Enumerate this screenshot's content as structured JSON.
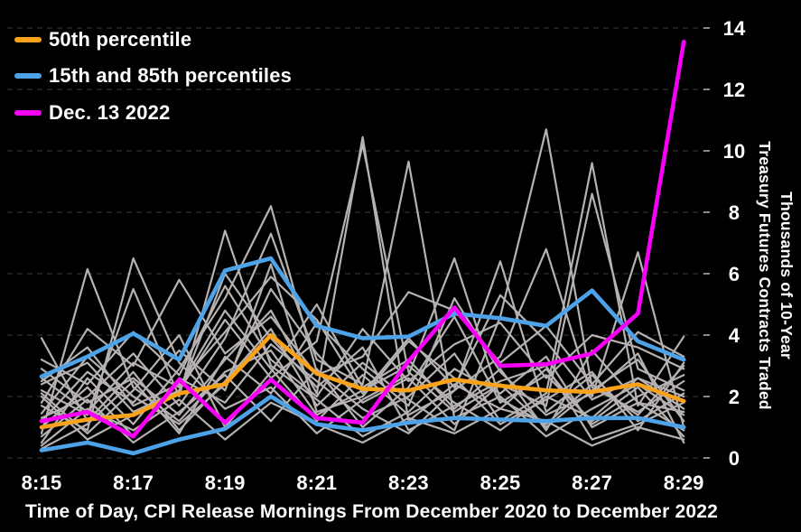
{
  "legend": [
    {
      "label": "50th percentile",
      "color": "#f9a21a"
    },
    {
      "label": "15th and 85th percentiles",
      "color": "#4da2e8"
    },
    {
      "label": "Dec. 13 2022",
      "color": "#f800f8"
    }
  ],
  "y_axis": {
    "ticks": [
      0,
      2,
      4,
      6,
      8,
      10,
      12,
      14
    ],
    "label_line1": "Thousands of 10-Year",
    "label_line2": "Treasury Futures Contracts Traded"
  },
  "x_axis": {
    "ticks": [
      "8:15",
      "8:17",
      "8:19",
      "8:21",
      "8:23",
      "8:25",
      "8:27",
      "8:29"
    ],
    "title": "Time of Day, CPI Release Mornings From December 2020 to December 2022"
  },
  "colors": {
    "background": "#000000",
    "grid": "#3c3c3c",
    "axis_tick": "#8a8a8a",
    "gray_line": "#b7b2b2",
    "text": "#ffffff"
  },
  "chart_data": {
    "type": "line",
    "title": "",
    "xlabel": "Time of Day, CPI Release Mornings From December 2020 to December 2022",
    "ylabel": "Thousands of 10-Year Treasury Futures Contracts Traded",
    "x": [
      "8:15",
      "8:16",
      "8:17",
      "8:18",
      "8:19",
      "8:20",
      "8:21",
      "8:22",
      "8:23",
      "8:24",
      "8:25",
      "8:26",
      "8:27",
      "8:28",
      "8:29"
    ],
    "ylim": [
      0,
      14
    ],
    "grid": "horizontal-dashed",
    "legend_position": "top-left",
    "series": [
      {
        "name": "cpi-morning-01",
        "role": "individual-morning",
        "color": "#b7b2b2",
        "width": 2.2,
        "values": [
          2.9,
          1.8,
          2.6,
          1.4,
          3.2,
          4.8,
          2.1,
          10.45,
          1.2,
          2.4,
          1.6,
          2.9,
          1.1,
          2.0,
          2.7
        ]
      },
      {
        "name": "cpi-morning-02",
        "role": "individual-morning",
        "color": "#b7b2b2",
        "width": 2.2,
        "values": [
          2.4,
          3.1,
          1.5,
          2.2,
          4.5,
          2.6,
          3.8,
          10.2,
          2.8,
          1.5,
          2.4,
          1.0,
          2.2,
          3.2,
          1.2
        ]
      },
      {
        "name": "cpi-morning-03",
        "role": "individual-morning",
        "color": "#b7b2b2",
        "width": 2.2,
        "values": [
          0.8,
          6.15,
          2.3,
          1.2,
          2.8,
          3.5,
          1.4,
          2.2,
          3.0,
          1.8,
          0.9,
          2.0,
          1.3,
          2.6,
          1.6
        ]
      },
      {
        "name": "cpi-morning-04",
        "role": "individual-morning",
        "color": "#b7b2b2",
        "width": 2.2,
        "values": [
          1.7,
          0.9,
          6.5,
          3.1,
          1.6,
          2.3,
          0.8,
          1.9,
          2.7,
          6.5,
          1.9,
          1.1,
          2.4,
          1.4,
          3.0
        ]
      },
      {
        "name": "cpi-morning-05",
        "role": "individual-morning",
        "color": "#b7b2b2",
        "width": 2.2,
        "values": [
          2.2,
          1.4,
          5.5,
          2.0,
          7.4,
          3.0,
          1.9,
          0.7,
          1.5,
          2.9,
          2.1,
          3.3,
          1.0,
          1.8,
          0.9
        ]
      },
      {
        "name": "cpi-morning-06",
        "role": "individual-morning",
        "color": "#b7b2b2",
        "width": 2.2,
        "values": [
          0.5,
          2.6,
          1.1,
          2.9,
          5.2,
          8.2,
          2.8,
          1.6,
          0.8,
          2.2,
          6.4,
          1.5,
          2.7,
          1.2,
          2.1
        ]
      },
      {
        "name": "cpi-morning-07",
        "role": "individual-morning",
        "color": "#b7b2b2",
        "width": 2.2,
        "values": [
          1.3,
          2.0,
          3.4,
          1.7,
          3.9,
          7.3,
          3.2,
          2.4,
          9.65,
          1.3,
          2.0,
          0.7,
          1.6,
          2.4,
          1.4
        ]
      },
      {
        "name": "cpi-morning-08",
        "role": "individual-morning",
        "color": "#b7b2b2",
        "width": 2.2,
        "values": [
          3.9,
          1.2,
          2.8,
          0.9,
          2.5,
          4.2,
          1.7,
          3.1,
          1.9,
          0.9,
          4.6,
          10.7,
          2.3,
          1.5,
          2.5
        ]
      },
      {
        "name": "cpi-morning-09",
        "role": "individual-morning",
        "color": "#b7b2b2",
        "width": 2.2,
        "values": [
          1.0,
          2.3,
          0.7,
          2.6,
          1.8,
          3.7,
          2.5,
          1.3,
          2.0,
          3.4,
          1.2,
          2.1,
          9.6,
          1.7,
          3.95
        ]
      },
      {
        "name": "cpi-morning-10",
        "role": "individual-morning",
        "color": "#b7b2b2",
        "width": 2.2,
        "values": [
          2.6,
          1.5,
          3.1,
          2.3,
          4.8,
          2.9,
          1.2,
          2.7,
          1.4,
          2.2,
          3.3,
          6.8,
          2.0,
          6.7,
          1.0
        ]
      },
      {
        "name": "cpi-morning-11",
        "role": "individual-morning",
        "color": "#b7b2b2",
        "width": 2.2,
        "values": [
          1.45,
          3.3,
          2.0,
          1.1,
          2.4,
          5.5,
          3.4,
          1.8,
          2.6,
          1.1,
          2.4,
          1.7,
          8.6,
          2.9,
          2.2
        ]
      },
      {
        "name": "cpi-morning-12",
        "role": "individual-morning",
        "color": "#b7b2b2",
        "width": 2.2,
        "values": [
          0.3,
          1.1,
          2.5,
          0.8,
          3.3,
          2.1,
          4.4,
          2.9,
          1.7,
          5.2,
          2.8,
          1.4,
          2.1,
          3.4,
          0.5
        ]
      },
      {
        "name": "cpi-morning-13",
        "role": "individual-morning",
        "color": "#b7b2b2",
        "width": 2.2,
        "values": [
          2.0,
          0.6,
          1.4,
          2.1,
          6.0,
          3.9,
          2.3,
          3.6,
          0.9,
          1.7,
          2.5,
          3.0,
          0.6,
          1.1,
          1.8
        ]
      },
      {
        "name": "cpi-morning-14",
        "role": "individual-morning",
        "color": "#b7b2b2",
        "width": 2.2,
        "values": [
          1.2,
          2.8,
          1.8,
          3.5,
          2.2,
          6.3,
          1.5,
          2.0,
          3.8,
          2.6,
          1.1,
          1.9,
          2.8,
          0.9,
          3.1
        ]
      },
      {
        "name": "cpi-morning-15",
        "role": "individual-morning",
        "color": "#b7b2b2",
        "width": 2.2,
        "values": [
          0.7,
          1.9,
          0.5,
          1.5,
          2.7,
          1.2,
          2.9,
          1.0,
          2.3,
          4.6,
          1.8,
          2.7,
          1.2,
          2.3,
          0.7
        ]
      },
      {
        "name": "cpi-morning-16",
        "role": "individual-morning",
        "color": "#b7b2b2",
        "width": 2.2,
        "values": [
          2.1,
          0.8,
          2.2,
          4.0,
          1.0,
          2.8,
          5.0,
          2.3,
          3.2,
          1.6,
          2.9,
          0.9,
          3.5,
          1.8,
          1.5
        ]
      },
      {
        "name": "cpi-morning-17",
        "role": "individual-morning",
        "color": "#b7b2b2",
        "width": 2.2,
        "values": [
          3.2,
          2.4,
          4.1,
          2.7,
          5.6,
          3.2,
          2.0,
          4.2,
          2.5,
          3.7,
          4.4,
          2.6,
          4.0,
          3.6,
          2.9
        ]
      },
      {
        "name": "cpi-morning-18",
        "role": "individual-morning",
        "color": "#b7b2b2",
        "width": 2.2,
        "values": [
          0.4,
          1.6,
          0.9,
          1.9,
          0.6,
          1.8,
          1.1,
          0.5,
          1.3,
          0.8,
          1.6,
          1.2,
          0.4,
          1.0,
          0.6
        ]
      },
      {
        "name": "cpi-morning-19",
        "role": "individual-morning",
        "color": "#b7b2b2",
        "width": 2.2,
        "values": [
          1.8,
          4.2,
          3.0,
          5.8,
          3.4,
          4.6,
          2.7,
          3.3,
          5.4,
          4.8,
          3.1,
          4.3,
          2.4,
          4.1,
          3.3
        ]
      },
      {
        "name": "cpi-morning-20",
        "role": "individual-morning",
        "color": "#b7b2b2",
        "width": 2.2,
        "values": [
          2.5,
          3.6,
          1.7,
          2.4,
          4.1,
          5.9,
          4.5,
          2.1,
          3.9,
          2.3,
          5.3,
          3.8,
          1.9,
          2.6,
          2.0
        ]
      },
      {
        "name": "85th-percentile",
        "role": "percentile-85",
        "color": "#4da2e8",
        "width": 4.6,
        "values": [
          2.65,
          3.3,
          4.05,
          3.2,
          6.1,
          6.5,
          4.3,
          3.9,
          3.95,
          4.7,
          4.55,
          4.3,
          5.45,
          3.8,
          3.2
        ]
      },
      {
        "name": "15th-percentile",
        "role": "percentile-15",
        "color": "#4da2e8",
        "width": 4.6,
        "values": [
          0.25,
          0.5,
          0.15,
          0.6,
          0.95,
          2.0,
          1.1,
          0.9,
          1.15,
          1.3,
          1.25,
          1.2,
          1.3,
          1.3,
          1.0
        ]
      },
      {
        "name": "50th-percentile",
        "role": "percentile-50",
        "color": "#f9a21a",
        "width": 4.6,
        "values": [
          1.0,
          1.25,
          1.4,
          2.1,
          2.4,
          4.0,
          2.75,
          2.25,
          2.2,
          2.55,
          2.35,
          2.2,
          2.15,
          2.4,
          1.85
        ]
      },
      {
        "name": "dec-13-2022",
        "role": "highlight-day",
        "color": "#f800f8",
        "width": 4.6,
        "values": [
          1.2,
          1.5,
          0.7,
          2.55,
          1.15,
          2.55,
          1.3,
          1.15,
          3.15,
          4.9,
          3.0,
          3.05,
          3.4,
          4.7,
          13.55
        ]
      }
    ]
  }
}
